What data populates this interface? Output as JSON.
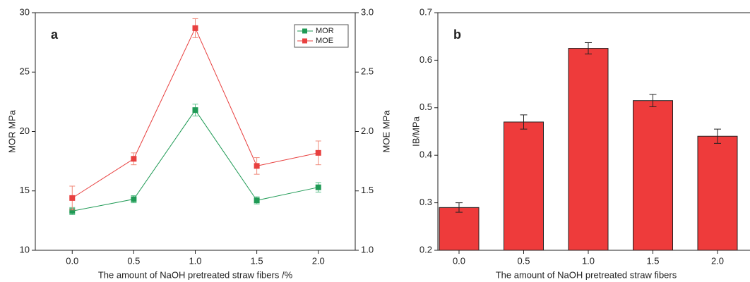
{
  "chart_data": [
    {
      "type": "line",
      "panel_label": "a",
      "x_label": "The amount of NaOH pretreated straw fibers /%",
      "y_label": "MOR MPa",
      "y2_label": "MOE MPa",
      "x": [
        0,
        0.5,
        1,
        1.5,
        2
      ],
      "series": [
        {
          "name": "MOR",
          "color": "#1f9a55",
          "error_color": "#5cc08a",
          "axis": "y",
          "values": [
            13.3,
            14.3,
            21.8,
            14.2,
            15.3
          ],
          "errors": [
            0.3,
            0.3,
            0.5,
            0.3,
            0.4
          ]
        },
        {
          "name": "MOE",
          "color": "#e8403f",
          "error_color": "#f08a7a",
          "axis": "y2",
          "values": [
            1.44,
            1.77,
            2.87,
            1.71,
            1.82
          ],
          "errors": [
            0.1,
            0.05,
            0.08,
            0.07,
            0.1
          ]
        }
      ],
      "xlim": [
        -0.3,
        2.3
      ],
      "xticks": [
        {
          "value": 0,
          "label": "0.0"
        },
        0.5,
        {
          "value": 1,
          "label": "1.0"
        },
        1.5,
        {
          "value": 2,
          "label": "2.0"
        }
      ],
      "ylim": [
        10,
        30
      ],
      "yticks": [
        10,
        15,
        20,
        25,
        30
      ],
      "y2lim": [
        1,
        3
      ],
      "y2ticks": [
        {
          "value": 1,
          "label": "1.0"
        },
        1.5,
        {
          "value": 2,
          "label": "2.0"
        },
        2.5,
        {
          "value": 3,
          "label": "3.0"
        }
      ],
      "legend": "upper-right"
    },
    {
      "type": "bar",
      "panel_label": "b",
      "x_label": "The amount of NaOH pretreated straw fibers",
      "y_label": "IB/MPa",
      "categories": [
        "0.0",
        "0.5",
        "1.0",
        "1.5",
        "2.0"
      ],
      "values": [
        0.29,
        0.47,
        0.625,
        0.515,
        0.44
      ],
      "errors": [
        0.01,
        0.015,
        0.012,
        0.013,
        0.015
      ],
      "color": "#ee3b3b",
      "ylim": [
        0.2,
        0.7
      ],
      "yticks": [
        0.2,
        0.3,
        0.4,
        0.5,
        0.6,
        0.7
      ]
    }
  ]
}
